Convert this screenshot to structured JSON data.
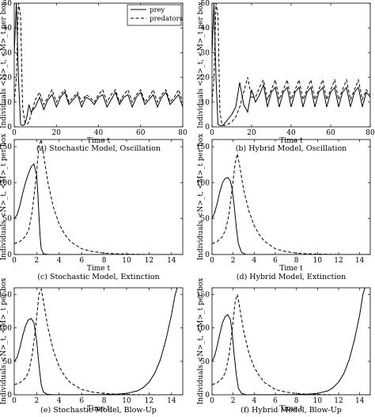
{
  "chart_data": [
    {
      "type": "line",
      "caption": "(a) Stochastic Model, Oscillation",
      "xlabel": "Time t",
      "ylabel": "Individuals <N>_t, <M>_t per box",
      "xlim": [
        0,
        80
      ],
      "ylim": [
        0,
        50
      ],
      "xticks": [
        0,
        20,
        40,
        60,
        80
      ],
      "yticks": [
        0,
        10,
        20,
        30,
        40,
        50
      ],
      "legend": {
        "placement": "top-right",
        "entries": [
          "prey",
          "predators"
        ]
      },
      "series": [
        {
          "name": "prey",
          "style": "solid",
          "x": [
            0,
            1,
            2,
            3,
            4,
            5,
            6,
            7,
            8,
            10,
            12,
            14,
            16,
            18,
            20,
            22,
            24,
            26,
            28,
            30,
            32,
            34,
            36,
            38,
            40,
            42,
            44,
            46,
            48,
            50,
            52,
            54,
            56,
            58,
            60,
            62,
            64,
            66,
            68,
            70,
            72,
            74,
            76,
            78,
            80
          ],
          "y": [
            30,
            50,
            20,
            1,
            0.5,
            1,
            4,
            9,
            6,
            8,
            12,
            7,
            11,
            13,
            8,
            12,
            14,
            9,
            11,
            13,
            8,
            12,
            11,
            9,
            12,
            13,
            8,
            11,
            14,
            9,
            12,
            13,
            8,
            12,
            14,
            9,
            11,
            13,
            8,
            12,
            14,
            9,
            11,
            13,
            8
          ]
        },
        {
          "name": "predators",
          "style": "dashed",
          "x": [
            0,
            1,
            2,
            3,
            4,
            5,
            6,
            7,
            8,
            10,
            12,
            14,
            16,
            18,
            20,
            22,
            24,
            26,
            28,
            30,
            32,
            34,
            36,
            38,
            40,
            42,
            44,
            46,
            48,
            50,
            52,
            54,
            56,
            58,
            60,
            62,
            64,
            66,
            68,
            70,
            72,
            74,
            76,
            78,
            80
          ],
          "y": [
            10,
            20,
            50,
            45,
            8,
            2,
            1,
            2,
            5,
            11,
            14,
            9,
            12,
            15,
            10,
            13,
            15,
            10,
            12,
            14,
            10,
            13,
            12,
            10,
            13,
            15,
            10,
            13,
            15,
            10,
            13,
            15,
            10,
            13,
            15,
            10,
            12,
            15,
            10,
            13,
            15,
            10,
            12,
            15,
            10
          ]
        }
      ]
    },
    {
      "type": "line",
      "caption": "(b) Hybrid Model, Oscillation",
      "xlabel": "Time t",
      "ylabel": "Individuals <N>_t, <M>_t per box",
      "xlim": [
        0,
        80
      ],
      "ylim": [
        0,
        50
      ],
      "xticks": [
        0,
        20,
        40,
        60,
        80
      ],
      "yticks": [
        0,
        10,
        20,
        30,
        40,
        50
      ],
      "series": [
        {
          "name": "prey",
          "style": "solid",
          "x": [
            0,
            1,
            2,
            3,
            4,
            5,
            6,
            8,
            10,
            12,
            14,
            16,
            18,
            20,
            22,
            24,
            26,
            28,
            30,
            32,
            34,
            36,
            38,
            40,
            42,
            44,
            46,
            48,
            50,
            52,
            54,
            56,
            58,
            60,
            62,
            64,
            66,
            68,
            70,
            72,
            74,
            76,
            78,
            80
          ],
          "y": [
            30,
            50,
            20,
            1,
            0.5,
            0.5,
            1,
            3,
            5,
            8,
            18,
            9,
            6,
            15,
            10,
            13,
            17,
            8,
            14,
            16,
            8,
            14,
            16,
            8,
            14,
            16,
            8,
            14,
            16,
            8,
            14,
            16,
            8,
            14,
            16,
            8,
            14,
            16,
            8,
            14,
            16,
            8,
            14,
            12
          ]
        },
        {
          "name": "predators",
          "style": "dashed",
          "x": [
            0,
            1,
            2,
            3,
            4,
            5,
            6,
            8,
            10,
            12,
            14,
            16,
            18,
            20,
            22,
            24,
            26,
            28,
            30,
            32,
            34,
            36,
            38,
            40,
            42,
            44,
            46,
            48,
            50,
            52,
            54,
            56,
            58,
            60,
            62,
            64,
            66,
            68,
            70,
            72,
            74,
            76,
            78,
            80
          ],
          "y": [
            10,
            20,
            50,
            45,
            6,
            1,
            0.5,
            1,
            2,
            4,
            8,
            14,
            20,
            12,
            12,
            16,
            19,
            11,
            15,
            19,
            11,
            15,
            19,
            11,
            15,
            19,
            11,
            15,
            19,
            11,
            15,
            19,
            11,
            15,
            19,
            11,
            15,
            19,
            11,
            15,
            19,
            11,
            15,
            13
          ]
        }
      ]
    },
    {
      "type": "line",
      "caption": "(c) Stochastic Model, Extinction",
      "xlabel": "Time t",
      "ylabel": "Individuals <N>_t, <M>_t per box",
      "xlim": [
        0,
        15
      ],
      "ylim": [
        0,
        160
      ],
      "xticks": [
        0,
        2,
        4,
        6,
        8,
        10,
        12,
        14
      ],
      "yticks": [
        0,
        50,
        100,
        150
      ],
      "series": [
        {
          "name": "prey",
          "style": "solid",
          "x": [
            0,
            0.25,
            0.5,
            0.75,
            1,
            1.25,
            1.5,
            1.75,
            2,
            2.1,
            2.2,
            2.3,
            2.4,
            2.6,
            3,
            15
          ],
          "y": [
            50,
            55,
            68,
            85,
            100,
            112,
            122,
            126,
            110,
            85,
            55,
            25,
            8,
            1,
            0,
            0
          ]
        },
        {
          "name": "predators",
          "style": "dashed",
          "x": [
            0,
            0.5,
            1,
            1.3,
            1.6,
            1.9,
            2.2,
            2.4,
            2.6,
            3,
            3.5,
            4,
            4.5,
            5,
            6,
            7,
            8,
            9,
            10,
            12,
            15
          ],
          "y": [
            15,
            18,
            25,
            35,
            60,
            100,
            150,
            160,
            140,
            100,
            65,
            42,
            28,
            18,
            8,
            4,
            2,
            1,
            0.5,
            0,
            0
          ]
        }
      ]
    },
    {
      "type": "line",
      "caption": "(d) Hybrid Model, Extinction",
      "xlabel": "Time t",
      "ylabel": "Individuals <N>_t, <M>_t per box",
      "xlim": [
        0,
        15
      ],
      "ylim": [
        0,
        160
      ],
      "xticks": [
        0,
        2,
        4,
        6,
        8,
        10,
        12,
        14
      ],
      "yticks": [
        0,
        50,
        100,
        150
      ],
      "series": [
        {
          "name": "prey",
          "style": "solid",
          "x": [
            0,
            0.25,
            0.5,
            0.75,
            1,
            1.25,
            1.5,
            1.75,
            1.9,
            2.1,
            2.3,
            2.5,
            2.8,
            3.2,
            15
          ],
          "y": [
            50,
            58,
            72,
            88,
            100,
            106,
            107,
            102,
            92,
            68,
            38,
            15,
            3,
            0,
            0
          ]
        },
        {
          "name": "predators",
          "style": "dashed",
          "x": [
            0,
            0.5,
            1,
            1.3,
            1.6,
            1.9,
            2.2,
            2.4,
            2.6,
            3,
            3.5,
            4,
            4.5,
            5,
            6,
            7,
            8,
            9,
            10,
            12,
            15
          ],
          "y": [
            15,
            18,
            25,
            35,
            55,
            90,
            128,
            140,
            125,
            90,
            60,
            40,
            27,
            18,
            8,
            4,
            2,
            1,
            0.5,
            0,
            0
          ]
        }
      ]
    },
    {
      "type": "line",
      "caption": "(e) Stochastic Model, Blow-Up",
      "xlabel": "Time t",
      "ylabel": "Individuals <N>_t, <M>_t per box",
      "xlim": [
        0,
        15
      ],
      "ylim": [
        0,
        160
      ],
      "xticks": [
        0,
        2,
        4,
        6,
        8,
        10,
        12,
        14
      ],
      "yticks": [
        0,
        50,
        100,
        150
      ],
      "series": [
        {
          "name": "prey",
          "style": "solid",
          "x": [
            0,
            0.25,
            0.5,
            0.75,
            1,
            1.25,
            1.5,
            1.75,
            2,
            2.2,
            2.4,
            2.6,
            2.9,
            3.3,
            4,
            5,
            6,
            7,
            8,
            9,
            10,
            11,
            11.5,
            12,
            12.5,
            13,
            13.5,
            14,
            14.3,
            14.5
          ],
          "y": [
            50,
            56,
            70,
            88,
            103,
            112,
            114,
            108,
            80,
            45,
            15,
            4,
            1,
            0.3,
            0.1,
            0.1,
            0.1,
            0.2,
            0.4,
            0.8,
            2,
            6,
            11,
            19,
            32,
            52,
            82,
            120,
            148,
            160
          ]
        },
        {
          "name": "predators",
          "style": "dashed",
          "x": [
            0,
            0.5,
            1,
            1.3,
            1.6,
            1.9,
            2.2,
            2.4,
            2.6,
            3,
            3.5,
            4,
            4.5,
            5,
            6,
            7,
            8,
            9,
            10,
            12,
            15
          ],
          "y": [
            15,
            18,
            25,
            35,
            60,
            100,
            150,
            158,
            140,
            100,
            65,
            42,
            28,
            18,
            8,
            4,
            2,
            1,
            0.5,
            0,
            0
          ]
        }
      ]
    },
    {
      "type": "line",
      "caption": "(f) Hybrid Model, Blow-Up",
      "xlabel": "Time t",
      "ylabel": "Individuals <N>_t, <M>_t per box",
      "xlim": [
        0,
        15
      ],
      "ylim": [
        0,
        160
      ],
      "xticks": [
        0,
        2,
        4,
        6,
        8,
        10,
        12,
        14
      ],
      "yticks": [
        0,
        50,
        100,
        150
      ],
      "series": [
        {
          "name": "prey",
          "style": "solid",
          "x": [
            0,
            0.25,
            0.5,
            0.75,
            1,
            1.25,
            1.5,
            1.75,
            1.9,
            2.1,
            2.3,
            2.5,
            2.8,
            3.2,
            4,
            5,
            6,
            7,
            8,
            9,
            10,
            11,
            11.5,
            12,
            12.5,
            13,
            13.5,
            14,
            14.3,
            14.5
          ],
          "y": [
            50,
            58,
            74,
            92,
            108,
            117,
            120,
            112,
            95,
            60,
            30,
            10,
            2,
            0.4,
            0.1,
            0.1,
            0.1,
            0.2,
            0.4,
            0.8,
            2,
            6,
            11,
            19,
            32,
            52,
            82,
            120,
            150,
            160
          ]
        },
        {
          "name": "predators",
          "style": "dashed",
          "x": [
            0,
            0.5,
            1,
            1.3,
            1.6,
            1.9,
            2.2,
            2.4,
            2.6,
            3,
            3.5,
            4,
            4.5,
            5,
            6,
            7,
            8,
            9,
            10,
            12,
            15
          ],
          "y": [
            15,
            18,
            25,
            35,
            58,
            95,
            140,
            150,
            132,
            95,
            62,
            41,
            28,
            18,
            8,
            4,
            2,
            1,
            0.5,
            0,
            0
          ]
        }
      ]
    }
  ]
}
